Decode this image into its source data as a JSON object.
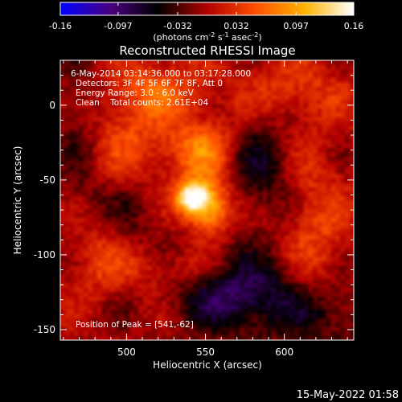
{
  "chart_data": {
    "type": "heatmap",
    "title": "Reconstructed RHESSI Image",
    "xlabel": "Heliocentric X (arcsec)",
    "ylabel": "Heliocentric Y (arcsec)",
    "xlim": [
      458,
      644
    ],
    "ylim": [
      -157,
      30
    ],
    "x_ticks": [
      500,
      550,
      600
    ],
    "y_ticks": [
      0,
      -50,
      -100,
      -150
    ],
    "colorbar": {
      "min": -0.16,
      "max": 0.16,
      "tick_values": [
        -0.16,
        -0.097,
        -0.032,
        0.032,
        0.097,
        0.16
      ],
      "tick_labels": [
        "-0.16",
        "-0.097",
        "-0.032",
        "0.032",
        "0.097",
        "0.16"
      ],
      "unit_label": "(photons cm",
      "unit_sup1": "-2",
      "unit_mid": " s",
      "unit_sup2": "-1",
      "unit_end": " asec",
      "unit_sup3": "-2",
      "unit_close": ")",
      "colormap": [
        "#0000ff",
        "#4b0082",
        "#000000",
        "#b40000",
        "#ff5000",
        "#ffb400",
        "#ffffff"
      ]
    },
    "annotations": [
      "6-May-2014 03:14:36.000 to 03:17:28.000",
      "Detectors: 3F 4F 5F 6F 7F 8F, Att 0",
      "Energy Range: 3.0 - 6.0 keV",
      "Clean    Total counts: 2.61E+04"
    ],
    "peak_label": "Position of Peak = [541,-62]",
    "peak": {
      "x": 541,
      "y": -62,
      "value": 0.16
    },
    "features": [
      {
        "x": 541,
        "y": -62,
        "sx": 7,
        "sy": 8,
        "amp": 0.16
      },
      {
        "x": 553,
        "y": -68,
        "sx": 9,
        "sy": 13,
        "amp": 0.11
      },
      {
        "x": 548,
        "y": -30,
        "sx": 14,
        "sy": 14,
        "amp": 0.07
      },
      {
        "x": 500,
        "y": -30,
        "sx": 24,
        "sy": 26,
        "amp": 0.05
      },
      {
        "x": 520,
        "y": 10,
        "sx": 22,
        "sy": 14,
        "amp": 0.05
      },
      {
        "x": 605,
        "y": 10,
        "sx": 25,
        "sy": 16,
        "amp": 0.04
      },
      {
        "x": 620,
        "y": -85,
        "sx": 14,
        "sy": 40,
        "amp": 0.045
      },
      {
        "x": 480,
        "y": -100,
        "sx": 14,
        "sy": 18,
        "amp": 0.04
      },
      {
        "x": 530,
        "y": -110,
        "sx": 30,
        "sy": 10,
        "amp": 0.035
      },
      {
        "x": 585,
        "y": -40,
        "sx": 14,
        "sy": 24,
        "amp": -0.05
      },
      {
        "x": 500,
        "y": -65,
        "sx": 20,
        "sy": 20,
        "amp": -0.035
      },
      {
        "x": 570,
        "y": -125,
        "sx": 26,
        "sy": 18,
        "amp": -0.09
      },
      {
        "x": 625,
        "y": -140,
        "sx": 20,
        "sy": 16,
        "amp": -0.05
      },
      {
        "x": 470,
        "y": -20,
        "sx": 12,
        "sy": 40,
        "amp": -0.035
      }
    ]
  },
  "footer": {
    "timestamp": "15-May-2022 01:58"
  }
}
